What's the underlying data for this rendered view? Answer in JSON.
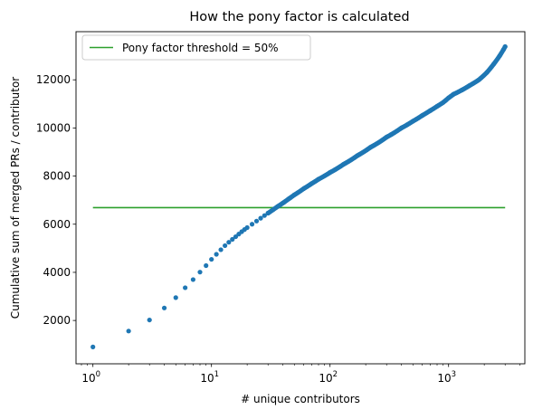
{
  "chart_data": {
    "type": "scatter",
    "title": "How the pony factor is calculated",
    "xlabel": "# unique contributors",
    "ylabel": "Cumulative sum of merged PRs / contributor",
    "xscale": "log",
    "xlim": [
      0.72,
      4400
    ],
    "ylim": [
      200,
      14000
    ],
    "x_ticks": [
      {
        "value": 1,
        "base": "10",
        "exp": "0"
      },
      {
        "value": 10,
        "base": "10",
        "exp": "1"
      },
      {
        "value": 100,
        "base": "10",
        "exp": "2"
      },
      {
        "value": 1000,
        "base": "10",
        "exp": "3"
      }
    ],
    "y_ticks": [
      {
        "value": 2000,
        "label": "2000"
      },
      {
        "value": 4000,
        "label": "4000"
      },
      {
        "value": 6000,
        "label": "6000"
      },
      {
        "value": 8000,
        "label": "8000"
      },
      {
        "value": 10000,
        "label": "10000"
      },
      {
        "value": 12000,
        "label": "12000"
      }
    ],
    "grid": false,
    "legend_position": "top-left",
    "series": [
      {
        "type": "scatter",
        "color": "#1f77b4",
        "points": [
          [
            1,
            900
          ],
          [
            2,
            1560
          ],
          [
            3,
            2020
          ],
          [
            4,
            2520
          ],
          [
            5,
            2950
          ],
          [
            6,
            3360
          ],
          [
            7,
            3700
          ],
          [
            8,
            4010
          ],
          [
            9,
            4280
          ],
          [
            10,
            4540
          ],
          [
            11,
            4750
          ],
          [
            12,
            4940
          ],
          [
            13,
            5110
          ],
          [
            14,
            5250
          ],
          [
            15,
            5370
          ],
          [
            16,
            5480
          ],
          [
            17,
            5590
          ],
          [
            18,
            5690
          ],
          [
            19,
            5780
          ],
          [
            20,
            5860
          ],
          [
            22,
            6000
          ],
          [
            24,
            6130
          ],
          [
            26,
            6250
          ],
          [
            28,
            6360
          ],
          [
            30,
            6460
          ],
          [
            33,
            6600
          ],
          [
            36,
            6730
          ],
          [
            40,
            6880
          ],
          [
            45,
            7060
          ],
          [
            50,
            7220
          ],
          [
            60,
            7480
          ],
          [
            70,
            7690
          ],
          [
            80,
            7870
          ],
          [
            100,
            8150
          ],
          [
            130,
            8490
          ],
          [
            170,
            8850
          ],
          [
            220,
            9200
          ],
          [
            300,
            9620
          ],
          [
            400,
            10000
          ],
          [
            500,
            10280
          ],
          [
            600,
            10520
          ],
          [
            700,
            10720
          ],
          [
            800,
            10900
          ],
          [
            900,
            11060
          ],
          [
            1000,
            11250
          ],
          [
            1100,
            11400
          ],
          [
            1300,
            11580
          ],
          [
            1500,
            11760
          ],
          [
            1800,
            12000
          ],
          [
            2100,
            12300
          ],
          [
            2400,
            12650
          ],
          [
            2700,
            13000
          ],
          [
            2900,
            13250
          ],
          [
            3000,
            13380
          ]
        ]
      },
      {
        "type": "line",
        "name": "Pony factor threshold = 50%",
        "color": "#2ca02c",
        "x": [
          1,
          3000
        ],
        "y": [
          6690,
          6690
        ]
      }
    ]
  }
}
